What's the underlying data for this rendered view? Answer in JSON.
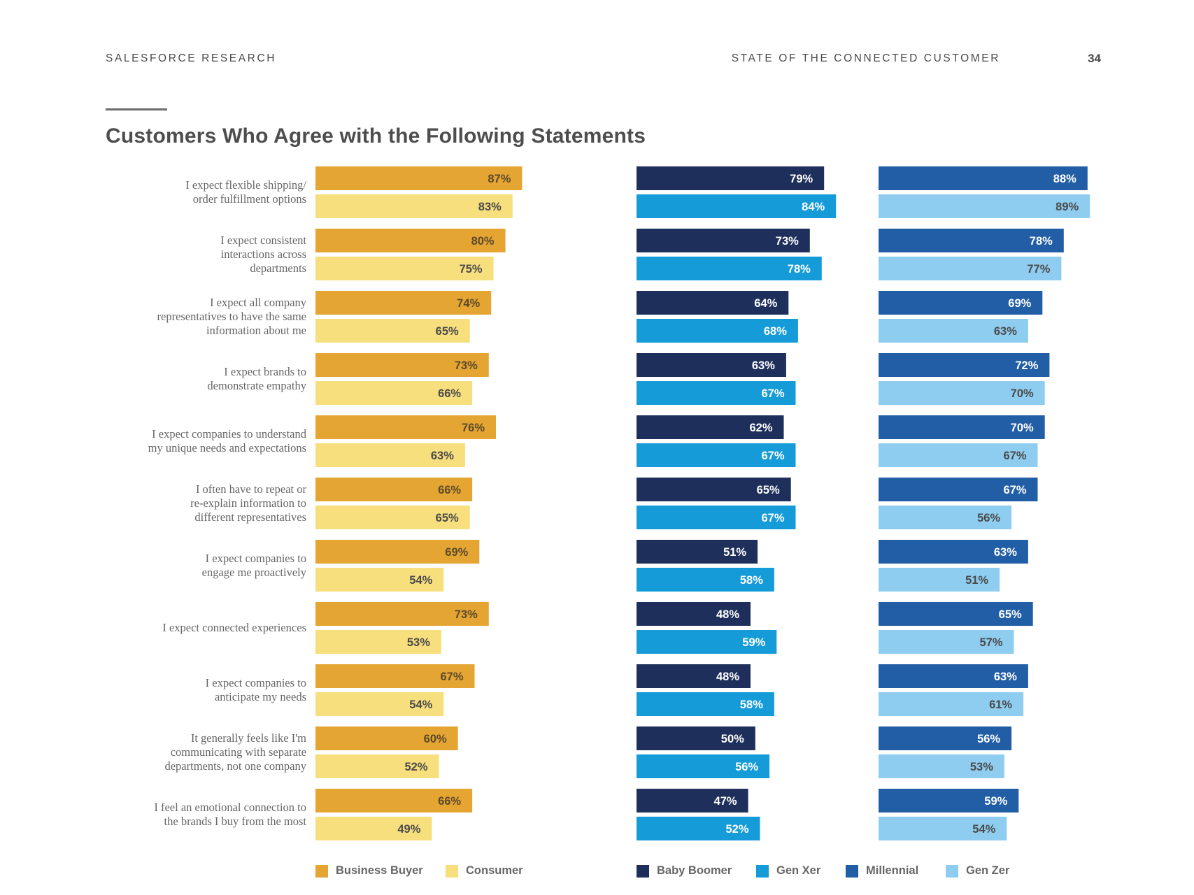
{
  "header": {
    "left": "SALESFORCE RESEARCH",
    "right": "STATE OF THE CONNECTED CUSTOMER",
    "page": "34"
  },
  "chart_data": {
    "type": "bar",
    "orientation": "horizontal",
    "title": "Customers Who Agree with the Following Statements",
    "categories": [
      "I expect flexible shipping/ order fulfillment options",
      "I expect consistent interactions across departments",
      "I expect all company representatives to have the same information about me",
      "I expect brands to demonstrate empathy",
      "I expect companies to understand my unique needs and expectations",
      "I often have to repeat or re-explain information to different representatives",
      "I expect companies to engage me proactively",
      "I expect connected experiences",
      "I expect companies to anticipate my needs",
      "It generally feels like I'm communicating with separate departments, not one company",
      "I feel an emotional connection to the brands I buy from the most"
    ],
    "category_lines": [
      [
        "I expect flexible shipping/",
        "order fulfillment options"
      ],
      [
        "I expect consistent",
        "interactions across",
        "departments"
      ],
      [
        "I expect all company",
        "representatives to have the same",
        "information about me"
      ],
      [
        "I expect brands to",
        "demonstrate empathy"
      ],
      [
        "I expect companies to understand",
        "my unique needs and expectations"
      ],
      [
        "I often have to repeat or",
        "re-explain information to",
        "different representatives"
      ],
      [
        "I expect companies to",
        "engage me proactively"
      ],
      [
        "I expect connected experiences"
      ],
      [
        "I expect companies to",
        "anticipate my needs"
      ],
      [
        "It generally feels like I'm",
        "communicating with separate",
        "departments, not one company"
      ],
      [
        "I feel an emotional connection to",
        "the brands I buy from the most"
      ]
    ],
    "unit": "%",
    "groups": [
      {
        "series": [
          {
            "name": "Business Buyer",
            "color": "#e5a532",
            "label_color": "#5a4a2a",
            "values": [
              87,
              80,
              74,
              73,
              76,
              66,
              69,
              73,
              67,
              60,
              66
            ]
          },
          {
            "name": "Consumer",
            "color": "#f7df7d",
            "label_color": "#4a4a4a",
            "values": [
              83,
              75,
              65,
              66,
              63,
              65,
              54,
              53,
              54,
              52,
              49
            ]
          }
        ]
      },
      {
        "series": [
          {
            "name": "Baby Boomer",
            "color": "#1f2f5c",
            "label_color": "#ffffff",
            "values": [
              79,
              73,
              64,
              63,
              62,
              65,
              51,
              48,
              48,
              50,
              47
            ]
          },
          {
            "name": "Gen Xer",
            "color": "#159cd8",
            "label_color": "#ffffff",
            "values": [
              84,
              78,
              68,
              67,
              67,
              67,
              58,
              59,
              58,
              56,
              52
            ]
          }
        ]
      },
      {
        "series": [
          {
            "name": "Millennial",
            "color": "#225ea5",
            "label_color": "#ffffff",
            "values": [
              88,
              78,
              69,
              72,
              70,
              67,
              63,
              65,
              63,
              56,
              59
            ]
          },
          {
            "name": "Gen Zer",
            "color": "#8fcdf0",
            "label_color": "#4a4a4a",
            "values": [
              89,
              77,
              63,
              70,
              67,
              56,
              51,
              57,
              61,
              53,
              54
            ]
          }
        ]
      }
    ]
  }
}
